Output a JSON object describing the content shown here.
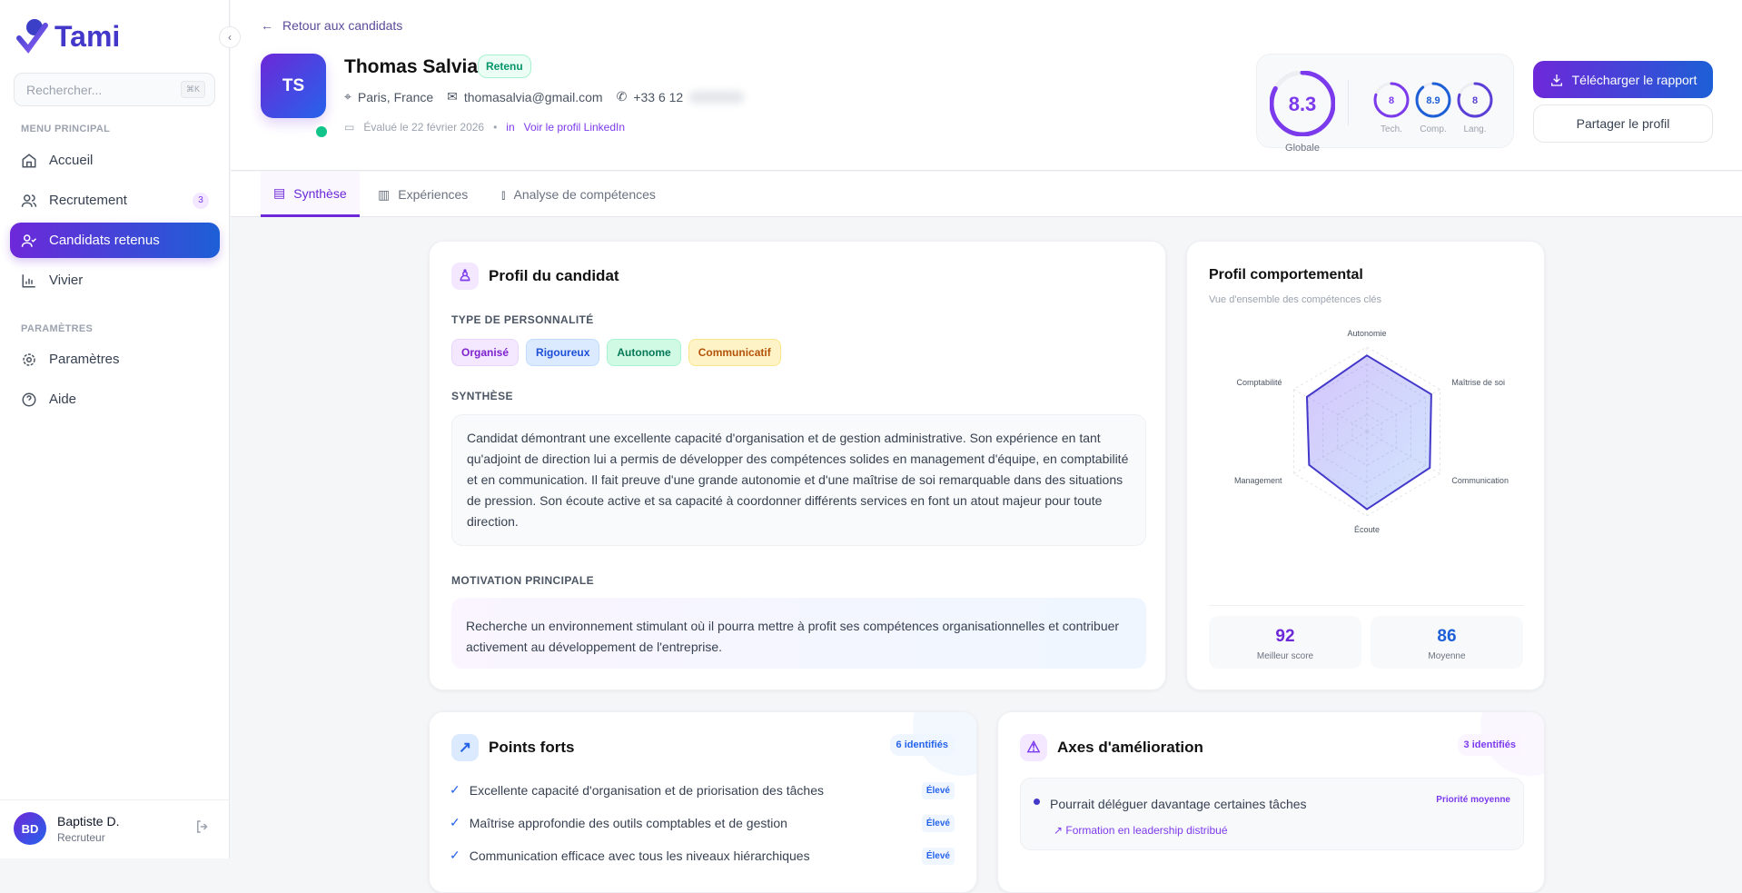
{
  "app": {
    "name": "Tami",
    "colors": {
      "primary": "#6d28d9",
      "secondary": "#1d5fd6",
      "success": "#10c48a"
    }
  },
  "sidebar": {
    "search_placeholder": "Rechercher...",
    "search_shortcut": "⌘K",
    "section_main": "MENU PRINCIPAL",
    "section_settings": "PARAMÈTRES",
    "items": [
      {
        "label": "Accueil",
        "icon": "home-icon"
      },
      {
        "label": "Recrutement",
        "icon": "users-icon",
        "badge": "3"
      },
      {
        "label": "Candidats retenus",
        "icon": "user-check-icon",
        "active": true
      },
      {
        "label": "Vivier",
        "icon": "bar-chart-icon"
      }
    ],
    "settings": [
      {
        "label": "Paramètres",
        "icon": "gear-icon"
      },
      {
        "label": "Aide",
        "icon": "help-icon"
      }
    ],
    "user": {
      "initials": "BD",
      "name": "Baptiste D.",
      "role": "Recruteur"
    }
  },
  "header": {
    "back": "Retour aux candidats",
    "initials": "TS",
    "name": "Thomas Salvia",
    "status": "Retenu",
    "location": "Paris, France",
    "email": "thomasalvia@gmail.com",
    "phone": "+33 6 12",
    "evaluated": "Évalué le 22 février 2026",
    "linkedin": "Voir le profil LinkedIn",
    "scores": {
      "global": {
        "value": "8.3",
        "label": "Globale",
        "fraction": 0.83
      },
      "tech": {
        "value": "8",
        "label": "Tech.",
        "fraction": 0.8
      },
      "comp": {
        "value": "8.9",
        "label": "Comp.",
        "fraction": 0.89
      },
      "lang": {
        "value": "8",
        "label": "Lang.",
        "fraction": 0.8
      }
    },
    "download": "Télécharger le rapport",
    "share": "Partager le profil"
  },
  "tabs": [
    {
      "label": "Synthèse",
      "active": true
    },
    {
      "label": "Expériences"
    },
    {
      "label": "Analyse de compétences"
    }
  ],
  "profile": {
    "title": "Profil du candidat",
    "personality_label": "TYPE DE PERSONNALITÉ",
    "traits": [
      "Organisé",
      "Rigoureux",
      "Autonome",
      "Communicatif"
    ],
    "synthesis_label": "SYNTHÈSE",
    "synthesis": "Candidat démontrant une excellente capacité d'organisation et de gestion administrative. Son expérience en tant qu'adjoint de direction lui a permis de développer des compétences solides en management d'équipe, en comptabilité et en communication. Il fait preuve d'une grande autonomie et d'une maîtrise de soi remarquable dans des situations de pression. Son écoute active et sa capacité à coordonner différents services en font un atout majeur pour toute direction.",
    "motivation_label": "MOTIVATION PRINCIPALE",
    "motivation": "Recherche un environnement stimulant où il pourra mettre à profit ses compétences organisationnelles et contribuer activement au développement de l'entreprise."
  },
  "behavior": {
    "title": "Profil comportemental",
    "subtitle": "Vue d'ensemble des compétences clés",
    "best_score": "92",
    "best_label": "Meilleur score",
    "average": "86",
    "average_label": "Moyenne"
  },
  "chart_data": {
    "type": "radar",
    "categories": [
      "Autonomie",
      "Maîtrise de soi",
      "Communication",
      "Écoute",
      "Management",
      "Comptabilité"
    ],
    "values": [
      90,
      88,
      86,
      92,
      79,
      82
    ],
    "range": [
      0,
      100
    ],
    "grid": true
  },
  "strengths": {
    "title": "Points forts",
    "count": "6 identifiés",
    "items": [
      {
        "text": "Excellente capacité d'organisation et de priorisation des tâches",
        "level": "Élevé"
      },
      {
        "text": "Maîtrise approfondie des outils comptables et de gestion",
        "level": "Élevé"
      },
      {
        "text": "Communication efficace avec tous les niveaux hiérarchiques",
        "level": "Élevé"
      }
    ]
  },
  "improvements": {
    "title": "Axes d'amélioration",
    "count": "3 identifiés",
    "items": [
      {
        "text": "Pourrait déléguer davantage certaines tâches",
        "priority": "Priorité moyenne",
        "action": "Formation en leadership distribué"
      }
    ]
  }
}
